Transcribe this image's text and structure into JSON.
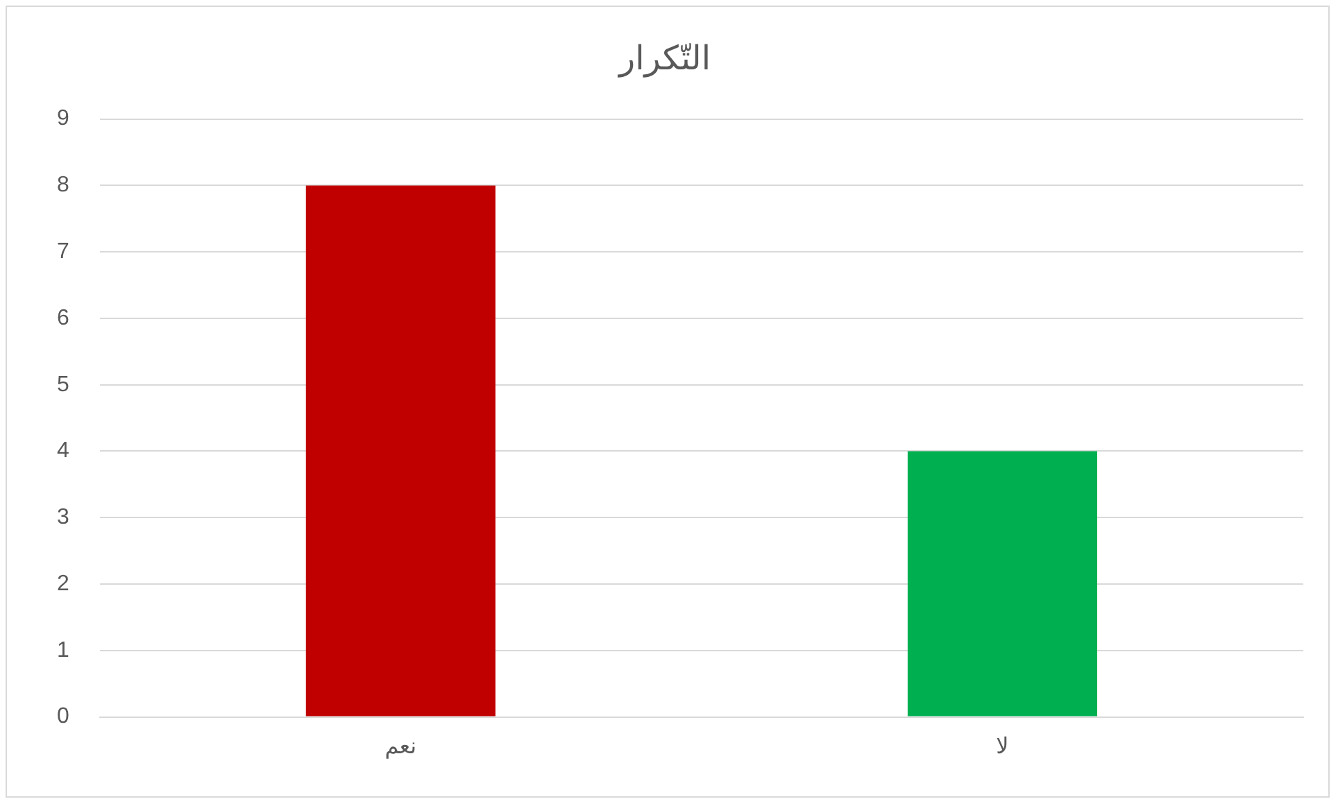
{
  "chart_data": {
    "type": "bar",
    "title": "التّكرار",
    "categories": [
      "نعم",
      "لا"
    ],
    "values": [
      8,
      4
    ],
    "colors": [
      "#c00000",
      "#00b050"
    ],
    "ylim": [
      0,
      9
    ],
    "yticks": [
      0,
      1,
      2,
      3,
      4,
      5,
      6,
      7,
      8,
      9
    ],
    "grid": "y"
  }
}
